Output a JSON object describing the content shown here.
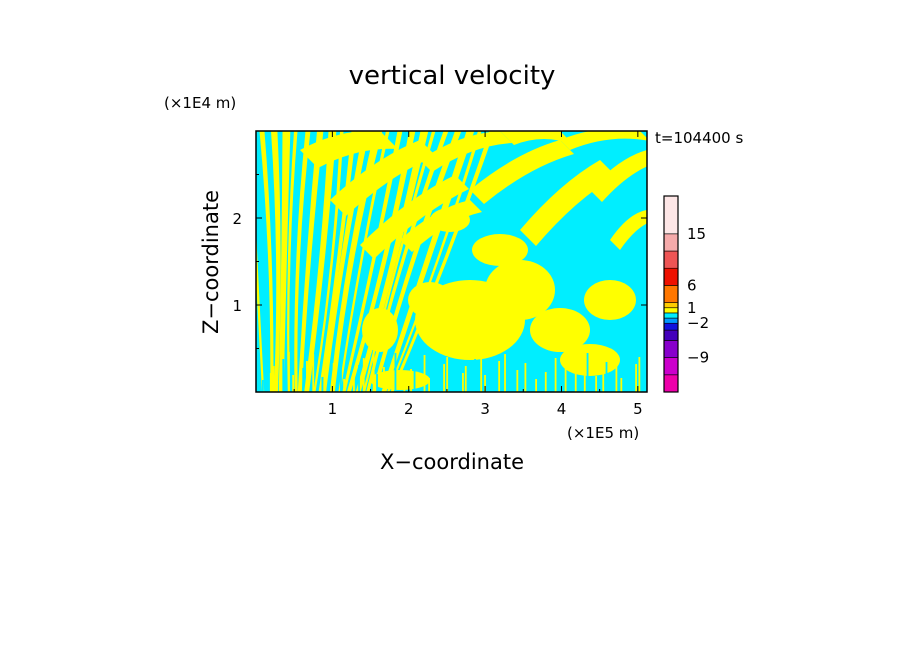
{
  "chart_data": {
    "type": "heatmap",
    "title": "vertical velocity",
    "xlabel": "X−coordinate",
    "ylabel": "Z−coordinate",
    "x_unit": "(×1E5 m)",
    "y_unit": "(×1E4 m)",
    "time_label": "t=104400 s",
    "xlim": [
      0,
      5.12
    ],
    "ylim": [
      0,
      3.0
    ],
    "x_ticks": [
      1,
      2,
      3,
      4,
      5
    ],
    "y_ticks": [
      1,
      2
    ],
    "x_tick_labels": [
      "1",
      "2",
      "3",
      "4",
      "5"
    ],
    "y_tick_labels": [
      "1",
      "2"
    ],
    "field_colors": {
      "positive": "#ffff00",
      "negative": "#00eeff"
    },
    "colorbar": {
      "bins": [
        {
          "color": "#ee00aa"
        },
        {
          "color": "#cc00cc"
        },
        {
          "color": "#8800cc"
        },
        {
          "color": "#4400bb"
        },
        {
          "color": "#1111dd"
        },
        {
          "color": "#0099ff"
        },
        {
          "color": "#00eeff"
        },
        {
          "color": "#ffff00"
        },
        {
          "color": "#ffcc00"
        },
        {
          "color": "#ff7700"
        },
        {
          "color": "#ee1100"
        },
        {
          "color": "#ee5555"
        },
        {
          "color": "#f5aaaa"
        },
        {
          "color": "#fde6e6"
        }
      ],
      "labels": [
        {
          "text": "−9",
          "value": -9
        },
        {
          "text": "−2",
          "value": -2
        },
        {
          "text": "1",
          "value": 1
        },
        {
          "text": "6",
          "value": 6
        },
        {
          "text": "15",
          "value": 15
        }
      ]
    }
  }
}
